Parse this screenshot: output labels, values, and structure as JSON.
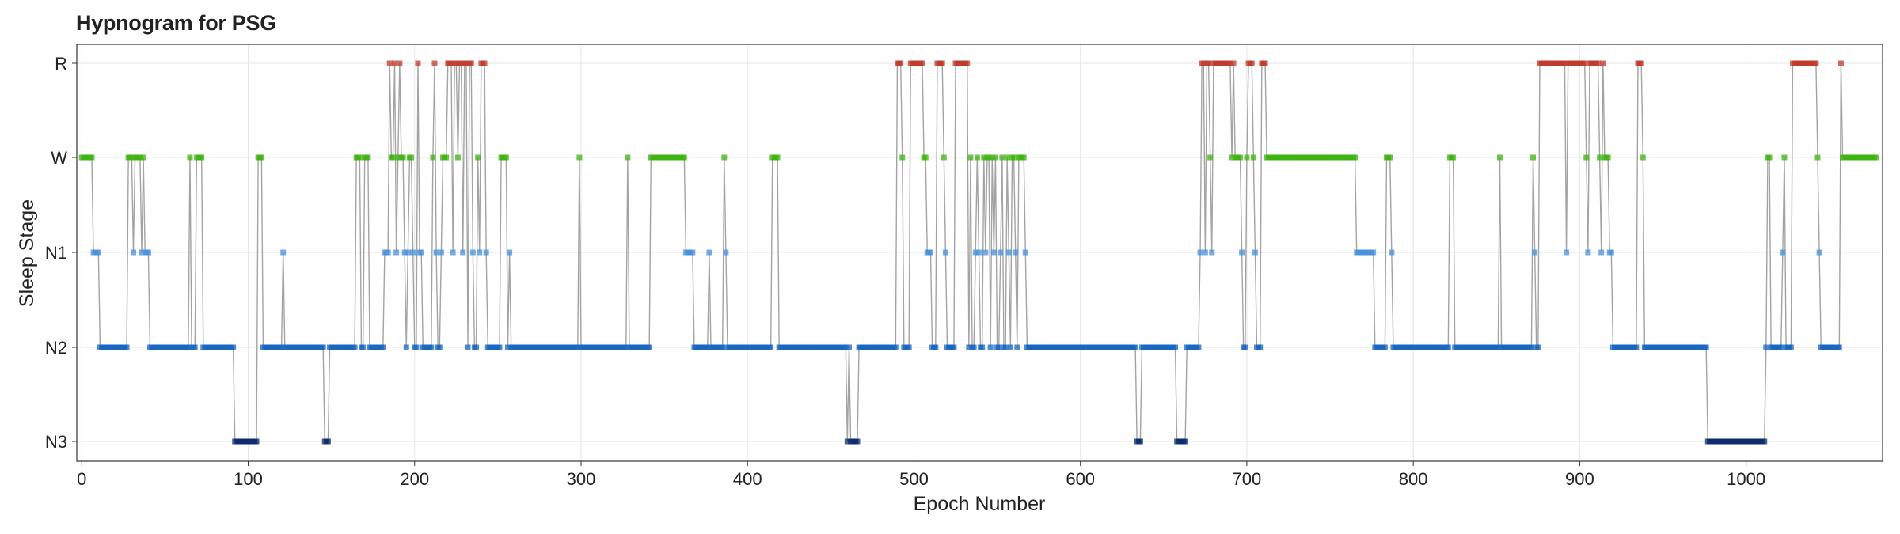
{
  "chart_data": {
    "type": "line",
    "title": "Hypnogram for PSG",
    "xlabel": "Epoch Number",
    "ylabel": "Sleep Stage",
    "xlim": [
      -3,
      1082
    ],
    "xticks": [
      0,
      100,
      200,
      300,
      400,
      500,
      600,
      700,
      800,
      900,
      1000
    ],
    "y_categories": [
      "N3",
      "N2",
      "N1",
      "W",
      "R"
    ],
    "grid": true,
    "legend": "none",
    "line_color": "#999999",
    "stage_colors": {
      "W": "#3cb30f",
      "R": "#c0392b",
      "N1": "#4a90d9",
      "N2": "#1565c0",
      "N3": "#0b2a6b"
    },
    "segments": [
      {
        "stage": "W",
        "start": 0,
        "end": 6
      },
      {
        "stage": "N1",
        "start": 7,
        "end": 10
      },
      {
        "stage": "N2",
        "start": 11,
        "end": 27
      },
      {
        "stage": "W",
        "start": 28,
        "end": 30
      },
      {
        "stage": "N1",
        "start": 31,
        "end": 31
      },
      {
        "stage": "W",
        "start": 32,
        "end": 35
      },
      {
        "stage": "N1",
        "start": 36,
        "end": 36
      },
      {
        "stage": "W",
        "start": 37,
        "end": 37
      },
      {
        "stage": "N1",
        "start": 38,
        "end": 40
      },
      {
        "stage": "N2",
        "start": 41,
        "end": 64
      },
      {
        "stage": "W",
        "start": 65,
        "end": 65
      },
      {
        "stage": "N2",
        "start": 66,
        "end": 68
      },
      {
        "stage": "W",
        "start": 69,
        "end": 72
      },
      {
        "stage": "N2",
        "start": 73,
        "end": 91
      },
      {
        "stage": "N3",
        "start": 92,
        "end": 105
      },
      {
        "stage": "W",
        "start": 106,
        "end": 108
      },
      {
        "stage": "N2",
        "start": 109,
        "end": 120
      },
      {
        "stage": "N1",
        "start": 121,
        "end": 121
      },
      {
        "stage": "N2",
        "start": 122,
        "end": 145
      },
      {
        "stage": "N3",
        "start": 146,
        "end": 148
      },
      {
        "stage": "N2",
        "start": 149,
        "end": 164
      },
      {
        "stage": "W",
        "start": 165,
        "end": 167
      },
      {
        "stage": "N2",
        "start": 168,
        "end": 169
      },
      {
        "stage": "W",
        "start": 170,
        "end": 172
      },
      {
        "stage": "N2",
        "start": 173,
        "end": 181
      },
      {
        "stage": "N1",
        "start": 182,
        "end": 184
      },
      {
        "stage": "R",
        "start": 185,
        "end": 185
      },
      {
        "stage": "W",
        "start": 186,
        "end": 187
      },
      {
        "stage": "R",
        "start": 188,
        "end": 188
      },
      {
        "stage": "N1",
        "start": 189,
        "end": 189
      },
      {
        "stage": "W",
        "start": 190,
        "end": 190
      },
      {
        "stage": "R",
        "start": 191,
        "end": 191
      },
      {
        "stage": "W",
        "start": 192,
        "end": 193
      },
      {
        "stage": "N1",
        "start": 194,
        "end": 194
      },
      {
        "stage": "N2",
        "start": 195,
        "end": 195
      },
      {
        "stage": "N1",
        "start": 196,
        "end": 196
      },
      {
        "stage": "W",
        "start": 197,
        "end": 198
      },
      {
        "stage": "N1",
        "start": 199,
        "end": 199
      },
      {
        "stage": "N2",
        "start": 200,
        "end": 201
      },
      {
        "stage": "R",
        "start": 202,
        "end": 202
      },
      {
        "stage": "N1",
        "start": 203,
        "end": 204
      },
      {
        "stage": "N2",
        "start": 205,
        "end": 210
      },
      {
        "stage": "W",
        "start": 211,
        "end": 211
      },
      {
        "stage": "R",
        "start": 212,
        "end": 212
      },
      {
        "stage": "N1",
        "start": 213,
        "end": 213
      },
      {
        "stage": "N2",
        "start": 214,
        "end": 215
      },
      {
        "stage": "N1",
        "start": 216,
        "end": 216
      },
      {
        "stage": "W",
        "start": 217,
        "end": 219
      },
      {
        "stage": "R",
        "start": 220,
        "end": 222
      },
      {
        "stage": "N1",
        "start": 223,
        "end": 223
      },
      {
        "stage": "R",
        "start": 224,
        "end": 225
      },
      {
        "stage": "W",
        "start": 226,
        "end": 226
      },
      {
        "stage": "R",
        "start": 227,
        "end": 228
      },
      {
        "stage": "N1",
        "start": 229,
        "end": 229
      },
      {
        "stage": "R",
        "start": 230,
        "end": 231
      },
      {
        "stage": "N2",
        "start": 232,
        "end": 232
      },
      {
        "stage": "R",
        "start": 233,
        "end": 234
      },
      {
        "stage": "N1",
        "start": 235,
        "end": 235
      },
      {
        "stage": "N2",
        "start": 236,
        "end": 237
      },
      {
        "stage": "W",
        "start": 238,
        "end": 238
      },
      {
        "stage": "N1",
        "start": 239,
        "end": 239
      },
      {
        "stage": "R",
        "start": 240,
        "end": 242
      },
      {
        "stage": "N1",
        "start": 243,
        "end": 243
      },
      {
        "stage": "N2",
        "start": 244,
        "end": 251
      },
      {
        "stage": "W",
        "start": 252,
        "end": 255
      },
      {
        "stage": "N2",
        "start": 256,
        "end": 256
      },
      {
        "stage": "N1",
        "start": 257,
        "end": 257
      },
      {
        "stage": "N2",
        "start": 258,
        "end": 298
      },
      {
        "stage": "W",
        "start": 299,
        "end": 299
      },
      {
        "stage": "N2",
        "start": 300,
        "end": 327
      },
      {
        "stage": "W",
        "start": 328,
        "end": 328
      },
      {
        "stage": "N2",
        "start": 329,
        "end": 341
      },
      {
        "stage": "W",
        "start": 342,
        "end": 362
      },
      {
        "stage": "N1",
        "start": 363,
        "end": 367
      },
      {
        "stage": "N2",
        "start": 368,
        "end": 376
      },
      {
        "stage": "N1",
        "start": 377,
        "end": 377
      },
      {
        "stage": "N2",
        "start": 378,
        "end": 385
      },
      {
        "stage": "W",
        "start": 386,
        "end": 386
      },
      {
        "stage": "N1",
        "start": 387,
        "end": 387
      },
      {
        "stage": "N2",
        "start": 388,
        "end": 414
      },
      {
        "stage": "W",
        "start": 415,
        "end": 418
      },
      {
        "stage": "N2",
        "start": 419,
        "end": 459
      },
      {
        "stage": "N3",
        "start": 460,
        "end": 460
      },
      {
        "stage": "N2",
        "start": 461,
        "end": 461
      },
      {
        "stage": "N3",
        "start": 462,
        "end": 466
      },
      {
        "stage": "N2",
        "start": 467,
        "end": 489
      },
      {
        "stage": "R",
        "start": 490,
        "end": 492
      },
      {
        "stage": "W",
        "start": 493,
        "end": 493
      },
      {
        "stage": "N2",
        "start": 494,
        "end": 497
      },
      {
        "stage": "R",
        "start": 498,
        "end": 505
      },
      {
        "stage": "W",
        "start": 506,
        "end": 507
      },
      {
        "stage": "N1",
        "start": 508,
        "end": 510
      },
      {
        "stage": "N2",
        "start": 511,
        "end": 513
      },
      {
        "stage": "R",
        "start": 514,
        "end": 517
      },
      {
        "stage": "W",
        "start": 518,
        "end": 518
      },
      {
        "stage": "N1",
        "start": 519,
        "end": 519
      },
      {
        "stage": "N2",
        "start": 520,
        "end": 524
      },
      {
        "stage": "R",
        "start": 525,
        "end": 532
      },
      {
        "stage": "N2",
        "start": 533,
        "end": 533
      },
      {
        "stage": "W",
        "start": 534,
        "end": 534
      },
      {
        "stage": "N2",
        "start": 535,
        "end": 536
      },
      {
        "stage": "N1",
        "start": 537,
        "end": 537
      },
      {
        "stage": "W",
        "start": 538,
        "end": 538
      },
      {
        "stage": "N1",
        "start": 539,
        "end": 539
      },
      {
        "stage": "N2",
        "start": 540,
        "end": 541
      },
      {
        "stage": "W",
        "start": 542,
        "end": 542
      },
      {
        "stage": "N1",
        "start": 543,
        "end": 543
      },
      {
        "stage": "W",
        "start": 544,
        "end": 545
      },
      {
        "stage": "N2",
        "start": 546,
        "end": 546
      },
      {
        "stage": "W",
        "start": 547,
        "end": 547
      },
      {
        "stage": "N1",
        "start": 548,
        "end": 548
      },
      {
        "stage": "W",
        "start": 549,
        "end": 549
      },
      {
        "stage": "N2",
        "start": 550,
        "end": 551
      },
      {
        "stage": "N1",
        "start": 552,
        "end": 552
      },
      {
        "stage": "W",
        "start": 553,
        "end": 553
      },
      {
        "stage": "N2",
        "start": 554,
        "end": 555
      },
      {
        "stage": "W",
        "start": 556,
        "end": 556
      },
      {
        "stage": "N1",
        "start": 557,
        "end": 557
      },
      {
        "stage": "N2",
        "start": 558,
        "end": 558
      },
      {
        "stage": "W",
        "start": 559,
        "end": 560
      },
      {
        "stage": "N1",
        "start": 561,
        "end": 561
      },
      {
        "stage": "N2",
        "start": 562,
        "end": 562
      },
      {
        "stage": "W",
        "start": 563,
        "end": 566
      },
      {
        "stage": "N1",
        "start": 567,
        "end": 567
      },
      {
        "stage": "N2",
        "start": 568,
        "end": 633
      },
      {
        "stage": "N3",
        "start": 634,
        "end": 636
      },
      {
        "stage": "N2",
        "start": 637,
        "end": 657
      },
      {
        "stage": "N3",
        "start": 658,
        "end": 663
      },
      {
        "stage": "N2",
        "start": 664,
        "end": 671
      },
      {
        "stage": "N1",
        "start": 672,
        "end": 672
      },
      {
        "stage": "R",
        "start": 673,
        "end": 674
      },
      {
        "stage": "N1",
        "start": 675,
        "end": 675
      },
      {
        "stage": "R",
        "start": 676,
        "end": 677
      },
      {
        "stage": "W",
        "start": 678,
        "end": 678
      },
      {
        "stage": "N1",
        "start": 679,
        "end": 679
      },
      {
        "stage": "R",
        "start": 680,
        "end": 690
      },
      {
        "stage": "W",
        "start": 691,
        "end": 691
      },
      {
        "stage": "R",
        "start": 692,
        "end": 692
      },
      {
        "stage": "W",
        "start": 693,
        "end": 696
      },
      {
        "stage": "N1",
        "start": 697,
        "end": 697
      },
      {
        "stage": "N2",
        "start": 698,
        "end": 699
      },
      {
        "stage": "W",
        "start": 700,
        "end": 700
      },
      {
        "stage": "R",
        "start": 701,
        "end": 703
      },
      {
        "stage": "W",
        "start": 704,
        "end": 704
      },
      {
        "stage": "N1",
        "start": 705,
        "end": 705
      },
      {
        "stage": "N2",
        "start": 706,
        "end": 708
      },
      {
        "stage": "R",
        "start": 709,
        "end": 711
      },
      {
        "stage": "W",
        "start": 712,
        "end": 765
      },
      {
        "stage": "N1",
        "start": 766,
        "end": 776
      },
      {
        "stage": "N2",
        "start": 777,
        "end": 783
      },
      {
        "stage": "W",
        "start": 784,
        "end": 786
      },
      {
        "stage": "N1",
        "start": 787,
        "end": 787
      },
      {
        "stage": "N2",
        "start": 788,
        "end": 821
      },
      {
        "stage": "W",
        "start": 822,
        "end": 824
      },
      {
        "stage": "N2",
        "start": 825,
        "end": 851
      },
      {
        "stage": "W",
        "start": 852,
        "end": 852
      },
      {
        "stage": "N2",
        "start": 853,
        "end": 871
      },
      {
        "stage": "W",
        "start": 872,
        "end": 872
      },
      {
        "stage": "N1",
        "start": 873,
        "end": 873
      },
      {
        "stage": "N2",
        "start": 874,
        "end": 875
      },
      {
        "stage": "R",
        "start": 876,
        "end": 891
      },
      {
        "stage": "N1",
        "start": 892,
        "end": 892
      },
      {
        "stage": "R",
        "start": 893,
        "end": 903
      },
      {
        "stage": "W",
        "start": 904,
        "end": 904
      },
      {
        "stage": "N1",
        "start": 905,
        "end": 905
      },
      {
        "stage": "R",
        "start": 906,
        "end": 911
      },
      {
        "stage": "W",
        "start": 912,
        "end": 912
      },
      {
        "stage": "N1",
        "start": 913,
        "end": 913
      },
      {
        "stage": "R",
        "start": 914,
        "end": 914
      },
      {
        "stage": "W",
        "start": 915,
        "end": 917
      },
      {
        "stage": "N1",
        "start": 918,
        "end": 919
      },
      {
        "stage": "N2",
        "start": 920,
        "end": 934
      },
      {
        "stage": "R",
        "start": 935,
        "end": 937
      },
      {
        "stage": "W",
        "start": 938,
        "end": 938
      },
      {
        "stage": "N2",
        "start": 939,
        "end": 976
      },
      {
        "stage": "N3",
        "start": 977,
        "end": 1011
      },
      {
        "stage": "N2",
        "start": 1012,
        "end": 1012
      },
      {
        "stage": "W",
        "start": 1013,
        "end": 1014
      },
      {
        "stage": "N2",
        "start": 1015,
        "end": 1021
      },
      {
        "stage": "N1",
        "start": 1022,
        "end": 1022
      },
      {
        "stage": "W",
        "start": 1023,
        "end": 1023
      },
      {
        "stage": "N2",
        "start": 1024,
        "end": 1027
      },
      {
        "stage": "R",
        "start": 1028,
        "end": 1042
      },
      {
        "stage": "W",
        "start": 1043,
        "end": 1043
      },
      {
        "stage": "N1",
        "start": 1044,
        "end": 1044
      },
      {
        "stage": "N2",
        "start": 1045,
        "end": 1056
      },
      {
        "stage": "R",
        "start": 1057,
        "end": 1057
      },
      {
        "stage": "W",
        "start": 1058,
        "end": 1078
      }
    ]
  }
}
